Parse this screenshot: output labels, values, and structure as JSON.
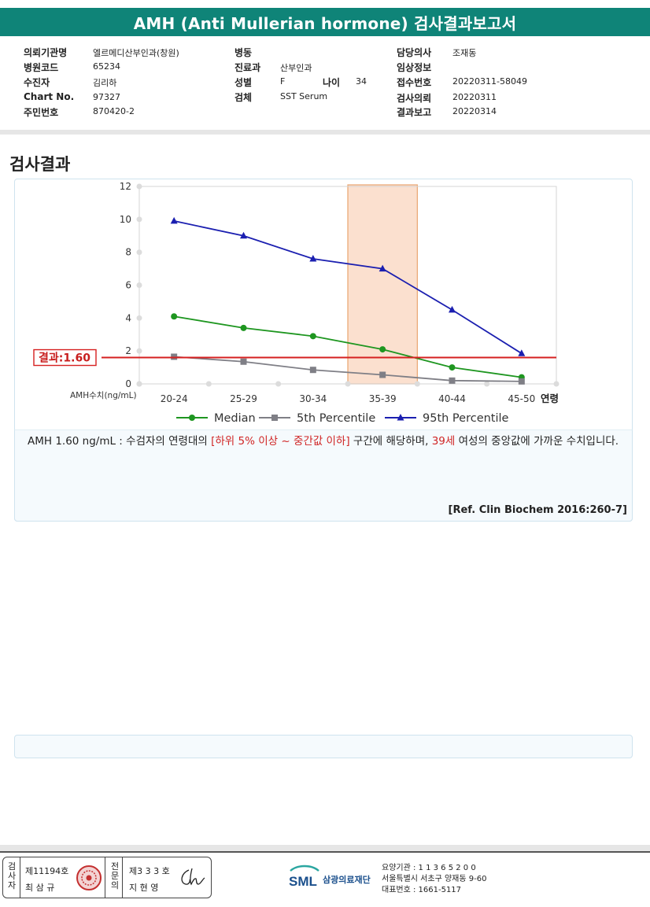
{
  "header": {
    "title": "AMH (Anti Mullerian hormone) 검사결과보고서"
  },
  "patient": {
    "institution_label": "의뢰기관명",
    "institution": "엘르메디산부인과(창원)",
    "hospital_code_label": "병원코드",
    "hospital_code": "65234",
    "examinee_label": "수진자",
    "examinee": "김리하",
    "chart_no_label": "Chart No.",
    "chart_no": "97327",
    "resident_no_label": "주민번호",
    "resident_no": "870420-2",
    "ward_label": "병동",
    "ward": "",
    "department_label": "진료과",
    "department": "산부인과",
    "sex_label": "성별",
    "sex": "F",
    "age_label": "나이",
    "age": "34",
    "specimen_label": "검체",
    "specimen": "SST Serum",
    "doctor_label": "담당의사",
    "doctor": "조재동",
    "clinical_label": "임상정보",
    "clinical": "",
    "receipt_label": "접수번호",
    "receipt": "20220311-58049",
    "request_label": "검사의뢰",
    "request": "20220311",
    "report_label": "결과보고",
    "report": "20220314"
  },
  "section": {
    "title": "검사결과"
  },
  "chart_data": {
    "type": "line",
    "categories": [
      "20-24",
      "25-29",
      "30-34",
      "35-39",
      "40-44",
      "45-50"
    ],
    "xlabel": "연령",
    "ylabel": "AMH수치(ng/mL)",
    "ylim": [
      0,
      12
    ],
    "yticks": [
      0,
      2,
      4,
      6,
      8,
      10,
      12
    ],
    "highlight_category": "35-39",
    "result_line": {
      "value": 1.6,
      "label": "결과:1.60"
    },
    "legend_position": "bottom",
    "series": [
      {
        "name": "Median",
        "marker": "circle",
        "color": "#1e9620",
        "values": [
          4.1,
          3.4,
          2.9,
          2.1,
          1.0,
          0.4
        ]
      },
      {
        "name": "5th Percentile",
        "marker": "square",
        "color": "#7f7f86",
        "values": [
          1.65,
          1.35,
          0.85,
          0.55,
          0.2,
          0.15
        ]
      },
      {
        "name": "95th Percentile",
        "marker": "triangle",
        "color": "#1b1fb0",
        "values": [
          9.9,
          9.0,
          7.6,
          7.0,
          4.5,
          1.85
        ]
      }
    ]
  },
  "interpretation": {
    "part1": "AMH  1.60 ng/mL : 수검자의 연령대의 ",
    "range": "[하위 5% 이상 ~ 중간값 이하]",
    "part2": "  구간에 해당하며, ",
    "age": "39세",
    "part3": " 여성의 중앙값에 가까운 수치입니다.",
    "reference": "[Ref. Clin Biochem 2016:260-7]"
  },
  "footer": {
    "examiner_label": "검사자",
    "examiner_no": "제11194호",
    "examiner_name": "최 삼 규",
    "specialist_label": "전문의",
    "specialist_no": "제3 3 3 호",
    "specialist_name": "지 현 영",
    "org_name": "삼광의료재단",
    "logo_text": "SML",
    "care_code": "요양기관 : 1 1 3 6 5 2 0 0",
    "address": "서울특별시 서초구 양재동 9-60",
    "phone": "대표번호 : 1661-5117"
  }
}
